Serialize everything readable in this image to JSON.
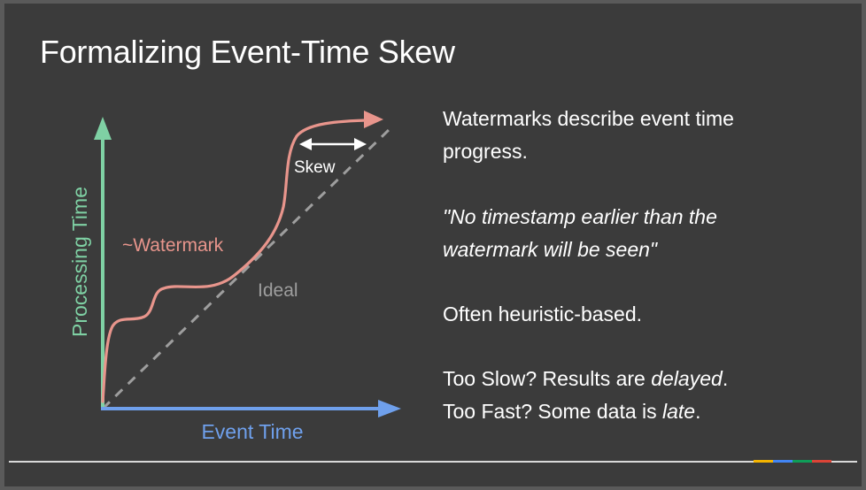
{
  "slide": {
    "title": "Formalizing Event-Time Skew",
    "diagram": {
      "y_axis_label": "Processing Time",
      "x_axis_label": "Event Time",
      "watermark_label": "~Watermark",
      "ideal_label": "Ideal",
      "skew_label": "Skew",
      "colors": {
        "y_axis": "#7fd1a4",
        "x_axis": "#6fa0ec",
        "watermark": "#e8958c",
        "ideal": "#9e9e9e",
        "skew": "#ffffff"
      }
    },
    "text": {
      "line1": "Watermarks describe event time",
      "line2": "progress.",
      "quote1": "\"No timestamp earlier than the",
      "quote2": "watermark will be seen\"",
      "heuristic": "Often heuristic-based.",
      "slow_prefix": "Too Slow? Results are ",
      "slow_emph": "delayed",
      "slow_suffix": ".",
      "fast_prefix": "Too Fast? Some data is ",
      "fast_emph": "late",
      "fast_suffix": "."
    },
    "footer_colors": [
      "#f4b400",
      "#4285f4",
      "#0f9d58",
      "#db4437"
    ]
  }
}
